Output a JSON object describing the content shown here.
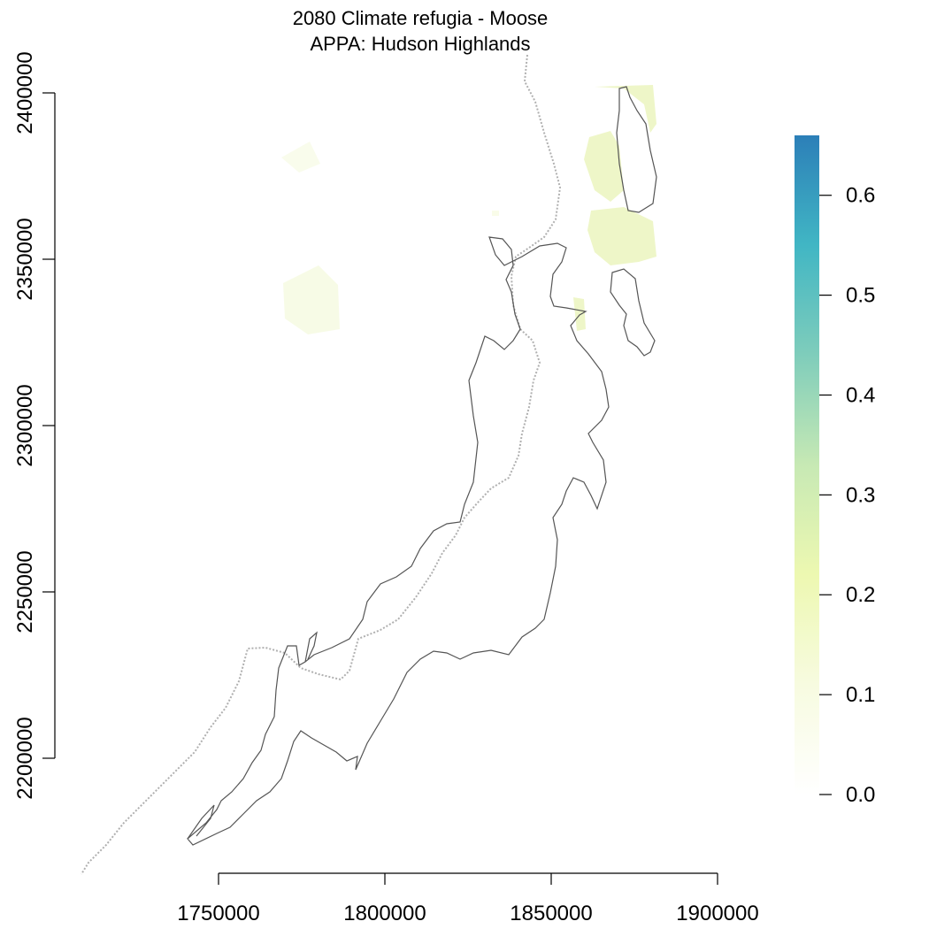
{
  "title": {
    "line1": "2080 Climate refugia - Moose",
    "line2": "APPA: Hudson Highlands"
  },
  "map_data": {
    "x_axis": {
      "ticks": [
        "1750000",
        "1800000",
        "1850000",
        "1900000"
      ],
      "range": [
        1750000,
        1900000
      ]
    },
    "y_axis": {
      "ticks": [
        "2200000",
        "2250000",
        "2300000",
        "2350000",
        "2400000"
      ],
      "range": [
        2200000,
        2400000
      ]
    },
    "legend": {
      "type": "colorbar",
      "placement": "right",
      "ticks": [
        "0.0",
        "0.1",
        "0.2",
        "0.3",
        "0.4",
        "0.5",
        "0.6"
      ],
      "range": [
        0.0,
        0.66
      ],
      "colors": [
        "#ffffff",
        "#f7fbe0",
        "#edf8b1",
        "#c7e9b4",
        "#7fcdbb",
        "#41b6c4",
        "#2c7fb8"
      ]
    },
    "layers": [
      {
        "name": "APPA boundary",
        "style": "solid",
        "color": "#555555"
      },
      {
        "name": "state line",
        "style": "dotted",
        "color": "#b0b0b0"
      },
      {
        "name": "refugia raster",
        "style": "fill",
        "color": "#eef7c4"
      }
    ]
  }
}
